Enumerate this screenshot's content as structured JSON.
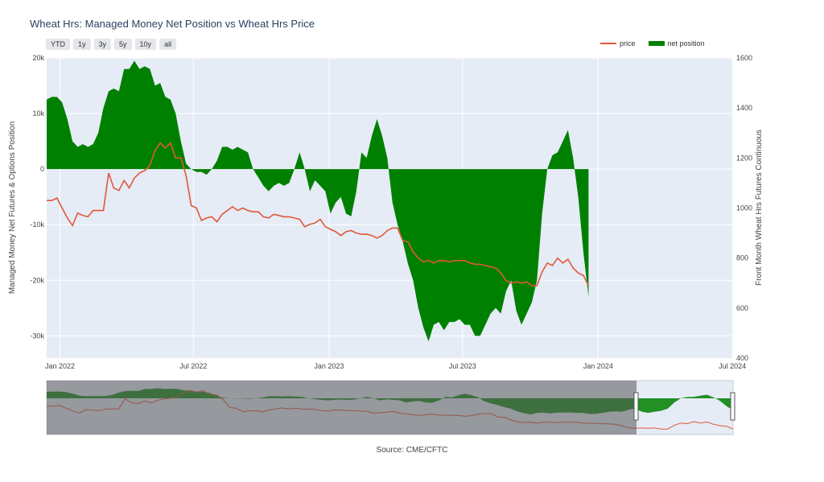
{
  "chart_data": {
    "type": "area",
    "title": "Wheat Hrs: Managed Money Net Position vs Wheat Hrs Price",
    "ylabel": "Managed Money Net Futures & Options Position",
    "y2label": "Front Month Wheat Hrs Futures Continuous",
    "source": "Source: CME/CFTC",
    "range_buttons": [
      "YTD",
      "1y",
      "3y",
      "5y",
      "10y",
      "all"
    ],
    "x_ticks": [
      "Jan 2022",
      "Jul 2022",
      "Jan 2023",
      "Jul 2023",
      "Jan 2024",
      "Jul 2024"
    ],
    "y_ticks": [
      "20k",
      "10k",
      "0",
      "-10k",
      "-20k",
      "-30k"
    ],
    "y2_ticks": [
      "1600",
      "1400",
      "1200",
      "1000",
      "800",
      "600",
      "400"
    ],
    "ylim": [
      -34000,
      20000
    ],
    "y2lim": [
      400,
      1600
    ],
    "legend_placement": "top-right",
    "series": [
      {
        "name": "net position",
        "color": "#008000",
        "values": [
          [
            "2021-12-14",
            12500
          ],
          [
            "2021-12-21",
            13000
          ],
          [
            "2021-12-28",
            13000
          ],
          [
            "2022-01-04",
            12000
          ],
          [
            "2022-01-11",
            9000
          ],
          [
            "2022-01-18",
            5000
          ],
          [
            "2022-01-25",
            4000
          ],
          [
            "2022-02-01",
            4500
          ],
          [
            "2022-02-08",
            4000
          ],
          [
            "2022-02-15",
            4500
          ],
          [
            "2022-02-22",
            6500
          ],
          [
            "2022-03-01",
            11000
          ],
          [
            "2022-03-08",
            14000
          ],
          [
            "2022-03-15",
            14500
          ],
          [
            "2022-03-22",
            14000
          ],
          [
            "2022-03-29",
            18000
          ],
          [
            "2022-04-05",
            18000
          ],
          [
            "2022-04-12",
            19500
          ],
          [
            "2022-04-19",
            18000
          ],
          [
            "2022-04-26",
            18500
          ],
          [
            "2022-05-03",
            18000
          ],
          [
            "2022-05-10",
            15000
          ],
          [
            "2022-05-17",
            15500
          ],
          [
            "2022-05-24",
            13000
          ],
          [
            "2022-05-31",
            12500
          ],
          [
            "2022-06-07",
            10000
          ],
          [
            "2022-06-14",
            5000
          ],
          [
            "2022-06-21",
            1000
          ],
          [
            "2022-06-28",
            0
          ],
          [
            "2022-07-05",
            -500
          ],
          [
            "2022-07-12",
            -500
          ],
          [
            "2022-07-19",
            -1000
          ],
          [
            "2022-07-26",
            0
          ],
          [
            "2022-08-02",
            1500
          ],
          [
            "2022-08-09",
            4000
          ],
          [
            "2022-08-16",
            4000
          ],
          [
            "2022-08-23",
            3500
          ],
          [
            "2022-08-30",
            4000
          ],
          [
            "2022-09-06",
            3500
          ],
          [
            "2022-09-13",
            3000
          ],
          [
            "2022-09-20",
            0
          ],
          [
            "2022-09-27",
            -1500
          ],
          [
            "2022-10-04",
            -3000
          ],
          [
            "2022-10-11",
            -4000
          ],
          [
            "2022-10-18",
            -3000
          ],
          [
            "2022-10-25",
            -2500
          ],
          [
            "2022-11-01",
            -3000
          ],
          [
            "2022-11-08",
            -2500
          ],
          [
            "2022-11-15",
            0
          ],
          [
            "2022-11-22",
            3000
          ],
          [
            "2022-11-29",
            0
          ],
          [
            "2022-12-06",
            -4000
          ],
          [
            "2022-12-13",
            -2000
          ],
          [
            "2022-12-20",
            -3000
          ],
          [
            "2022-12-27",
            -4000
          ],
          [
            "2023-01-03",
            -8000
          ],
          [
            "2023-01-10",
            -6000
          ],
          [
            "2023-01-17",
            -5000
          ],
          [
            "2023-01-24",
            -8000
          ],
          [
            "2023-01-31",
            -8500
          ],
          [
            "2023-02-07",
            -4000
          ],
          [
            "2023-02-14",
            3000
          ],
          [
            "2023-02-21",
            2000
          ],
          [
            "2023-02-28",
            6000
          ],
          [
            "2023-03-07",
            9000
          ],
          [
            "2023-03-14",
            6000
          ],
          [
            "2023-03-21",
            2000
          ],
          [
            "2023-03-28",
            -6000
          ],
          [
            "2023-04-04",
            -10000
          ],
          [
            "2023-04-11",
            -13000
          ],
          [
            "2023-04-18",
            -17000
          ],
          [
            "2023-04-25",
            -20000
          ],
          [
            "2023-05-02",
            -25000
          ],
          [
            "2023-05-09",
            -28500
          ],
          [
            "2023-05-16",
            -31000
          ],
          [
            "2023-05-23",
            -28000
          ],
          [
            "2023-05-30",
            -27500
          ],
          [
            "2023-06-06",
            -29000
          ],
          [
            "2023-06-13",
            -27500
          ],
          [
            "2023-06-20",
            -27500
          ],
          [
            "2023-06-27",
            -27000
          ],
          [
            "2023-07-04",
            -28000
          ],
          [
            "2023-07-11",
            -28000
          ],
          [
            "2023-07-18",
            -30000
          ],
          [
            "2023-07-25",
            -30000
          ],
          [
            "2023-08-01",
            -28000
          ],
          [
            "2023-08-08",
            -26000
          ],
          [
            "2023-08-15",
            -25000
          ],
          [
            "2023-08-22",
            -26000
          ],
          [
            "2023-08-29",
            -22000
          ],
          [
            "2023-09-05",
            -20000
          ],
          [
            "2023-09-12",
            -25500
          ],
          [
            "2023-09-19",
            -28000
          ],
          [
            "2023-09-26",
            -26000
          ],
          [
            "2023-10-03",
            -24000
          ],
          [
            "2023-10-10",
            -20000
          ],
          [
            "2023-10-17",
            -8000
          ],
          [
            "2023-10-24",
            0
          ],
          [
            "2023-10-31",
            2500
          ],
          [
            "2023-11-07",
            3000
          ],
          [
            "2023-11-14",
            5000
          ],
          [
            "2023-11-21",
            7000
          ],
          [
            "2023-11-28",
            2000
          ],
          [
            "2023-12-05",
            -5000
          ],
          [
            "2023-12-12",
            -15000
          ],
          [
            "2023-12-19",
            -23000
          ]
        ]
      },
      {
        "name": "price",
        "color": "#e0583a",
        "values": [
          [
            "2021-12-14",
            1030
          ],
          [
            "2021-12-21",
            1030
          ],
          [
            "2021-12-28",
            1040
          ],
          [
            "2022-01-04",
            1000
          ],
          [
            "2022-01-11",
            960
          ],
          [
            "2022-01-18",
            930
          ],
          [
            "2022-01-25",
            980
          ],
          [
            "2022-02-01",
            970
          ],
          [
            "2022-02-08",
            965
          ],
          [
            "2022-02-15",
            990
          ],
          [
            "2022-02-22",
            990
          ],
          [
            "2022-03-01",
            990
          ],
          [
            "2022-03-08",
            1140
          ],
          [
            "2022-03-15",
            1080
          ],
          [
            "2022-03-22",
            1070
          ],
          [
            "2022-03-29",
            1110
          ],
          [
            "2022-04-05",
            1080
          ],
          [
            "2022-04-12",
            1120
          ],
          [
            "2022-04-19",
            1140
          ],
          [
            "2022-04-26",
            1150
          ],
          [
            "2022-05-03",
            1170
          ],
          [
            "2022-05-10",
            1230
          ],
          [
            "2022-05-17",
            1260
          ],
          [
            "2022-05-24",
            1240
          ],
          [
            "2022-05-31",
            1260
          ],
          [
            "2022-06-07",
            1200
          ],
          [
            "2022-06-14",
            1200
          ],
          [
            "2022-06-21",
            1130
          ],
          [
            "2022-06-28",
            1010
          ],
          [
            "2022-07-05",
            1000
          ],
          [
            "2022-07-12",
            950
          ],
          [
            "2022-07-19",
            960
          ],
          [
            "2022-07-26",
            965
          ],
          [
            "2022-08-02",
            945
          ],
          [
            "2022-08-09",
            975
          ],
          [
            "2022-08-16",
            990
          ],
          [
            "2022-08-23",
            1005
          ],
          [
            "2022-08-30",
            990
          ],
          [
            "2022-09-06",
            1000
          ],
          [
            "2022-09-13",
            990
          ],
          [
            "2022-09-20",
            985
          ],
          [
            "2022-09-27",
            985
          ],
          [
            "2022-10-04",
            965
          ],
          [
            "2022-10-11",
            960
          ],
          [
            "2022-10-18",
            975
          ],
          [
            "2022-10-25",
            970
          ],
          [
            "2022-11-01",
            965
          ],
          [
            "2022-11-08",
            965
          ],
          [
            "2022-11-15",
            960
          ],
          [
            "2022-11-22",
            955
          ],
          [
            "2022-11-29",
            925
          ],
          [
            "2022-12-06",
            935
          ],
          [
            "2022-12-13",
            940
          ],
          [
            "2022-12-20",
            955
          ],
          [
            "2022-12-27",
            925
          ],
          [
            "2023-01-03",
            915
          ],
          [
            "2023-01-10",
            905
          ],
          [
            "2023-01-17",
            890
          ],
          [
            "2023-01-24",
            905
          ],
          [
            "2023-01-31",
            910
          ],
          [
            "2023-02-07",
            900
          ],
          [
            "2023-02-14",
            895
          ],
          [
            "2023-02-21",
            895
          ],
          [
            "2023-02-28",
            890
          ],
          [
            "2023-03-07",
            880
          ],
          [
            "2023-03-14",
            890
          ],
          [
            "2023-03-21",
            910
          ],
          [
            "2023-03-28",
            920
          ],
          [
            "2023-04-04",
            920
          ],
          [
            "2023-04-11",
            870
          ],
          [
            "2023-04-18",
            865
          ],
          [
            "2023-04-25",
            825
          ],
          [
            "2023-05-02",
            800
          ],
          [
            "2023-05-09",
            785
          ],
          [
            "2023-05-16",
            790
          ],
          [
            "2023-05-23",
            780
          ],
          [
            "2023-05-30",
            790
          ],
          [
            "2023-06-06",
            790
          ],
          [
            "2023-06-13",
            785
          ],
          [
            "2023-06-20",
            790
          ],
          [
            "2023-06-27",
            790
          ],
          [
            "2023-07-04",
            790
          ],
          [
            "2023-07-11",
            780
          ],
          [
            "2023-07-18",
            775
          ],
          [
            "2023-07-25",
            775
          ],
          [
            "2023-08-01",
            770
          ],
          [
            "2023-08-08",
            765
          ],
          [
            "2023-08-15",
            760
          ],
          [
            "2023-08-22",
            740
          ],
          [
            "2023-08-29",
            710
          ],
          [
            "2023-09-05",
            700
          ],
          [
            "2023-09-12",
            705
          ],
          [
            "2023-09-19",
            700
          ],
          [
            "2023-09-26",
            705
          ],
          [
            "2023-10-03",
            690
          ],
          [
            "2023-10-10",
            690
          ],
          [
            "2023-10-17",
            745
          ],
          [
            "2023-10-24",
            780
          ],
          [
            "2023-10-31",
            770
          ],
          [
            "2023-11-07",
            800
          ],
          [
            "2023-11-14",
            780
          ],
          [
            "2023-11-21",
            795
          ],
          [
            "2023-11-28",
            760
          ],
          [
            "2023-12-05",
            740
          ],
          [
            "2023-12-12",
            730
          ],
          [
            "2023-12-19",
            690
          ]
        ]
      }
    ]
  }
}
